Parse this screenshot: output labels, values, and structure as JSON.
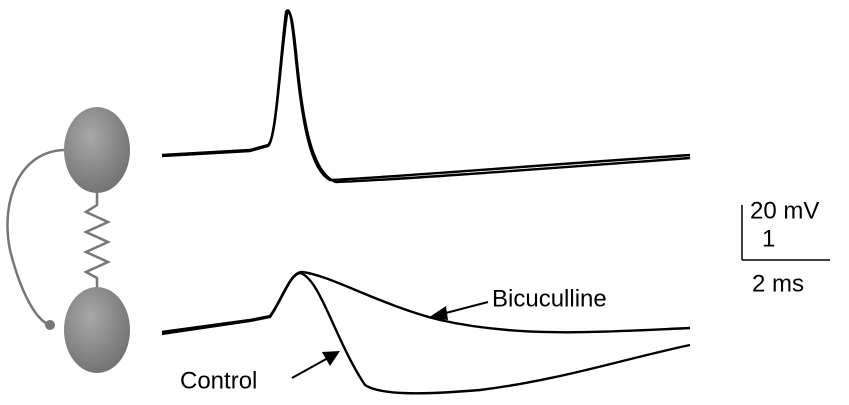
{
  "scale_bar": {
    "vertical_label": "20 mV",
    "vertical_sublabel": "1",
    "horizontal_label": "2 ms"
  },
  "annotations": {
    "bicuculline": "Bicuculline",
    "control": "Control"
  }
}
